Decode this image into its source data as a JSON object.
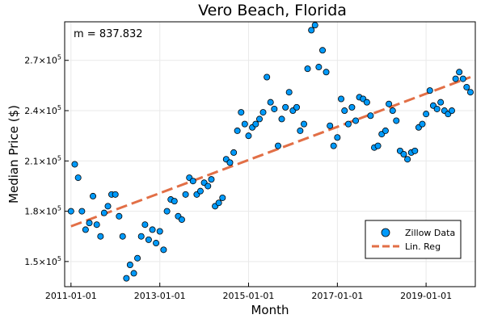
{
  "chart_data": {
    "type": "scatter",
    "title": "Vero Beach, Florida",
    "xlabel": "Month",
    "ylabel": "Median Price ($)",
    "annotation": "m = 837.832",
    "x_ticks": [
      "2011-01-01",
      "2013-01-01",
      "2015-01-01",
      "2017-01-01",
      "2019-01-01"
    ],
    "y_ticks": [
      {
        "value": 150000,
        "base": "1.5×10",
        "exp": "5"
      },
      {
        "value": 180000,
        "base": "1.8×10",
        "exp": "5"
      },
      {
        "value": 210000,
        "base": "2.1×10",
        "exp": "5"
      },
      {
        "value": 240000,
        "base": "2.4×10",
        "exp": "5"
      },
      {
        "value": 270000,
        "base": "2.7×10",
        "exp": "5"
      }
    ],
    "x_range": [
      "2010-11-10",
      "2020-02-10"
    ],
    "ylim": [
      135000,
      293000
    ],
    "grid": true,
    "legend_position": "bottom-right",
    "series": [
      {
        "name": "Zillow Data",
        "kind": "scatter",
        "color": "#009AFA",
        "points": [
          [
            "2011-01-01",
            180000
          ],
          [
            "2011-02-01",
            208000
          ],
          [
            "2011-03-01",
            200000
          ],
          [
            "2011-04-01",
            180000
          ],
          [
            "2011-05-01",
            169000
          ],
          [
            "2011-06-01",
            173000
          ],
          [
            "2011-07-01",
            189000
          ],
          [
            "2011-08-01",
            172000
          ],
          [
            "2011-09-01",
            165000
          ],
          [
            "2011-10-01",
            179000
          ],
          [
            "2011-11-01",
            183000
          ],
          [
            "2011-12-01",
            190000
          ],
          [
            "2012-01-01",
            190000
          ],
          [
            "2012-02-01",
            177000
          ],
          [
            "2012-03-01",
            165000
          ],
          [
            "2012-04-01",
            140000
          ],
          [
            "2012-05-01",
            148000
          ],
          [
            "2012-06-01",
            143000
          ],
          [
            "2012-07-01",
            152000
          ],
          [
            "2012-08-01",
            165000
          ],
          [
            "2012-09-01",
            172000
          ],
          [
            "2012-10-01",
            163000
          ],
          [
            "2012-11-01",
            169000
          ],
          [
            "2012-12-01",
            161000
          ],
          [
            "2013-01-01",
            168000
          ],
          [
            "2013-02-01",
            157000
          ],
          [
            "2013-03-01",
            180000
          ],
          [
            "2013-04-01",
            187000
          ],
          [
            "2013-05-01",
            186000
          ],
          [
            "2013-06-01",
            177000
          ],
          [
            "2013-07-01",
            175000
          ],
          [
            "2013-08-01",
            190000
          ],
          [
            "2013-09-01",
            200000
          ],
          [
            "2013-10-01",
            198000
          ],
          [
            "2013-11-01",
            190000
          ],
          [
            "2013-12-01",
            192000
          ],
          [
            "2014-01-01",
            197000
          ],
          [
            "2014-02-01",
            195000
          ],
          [
            "2014-03-01",
            199000
          ],
          [
            "2014-04-01",
            183000
          ],
          [
            "2014-05-01",
            185000
          ],
          [
            "2014-06-01",
            188000
          ],
          [
            "2014-07-01",
            211000
          ],
          [
            "2014-08-01",
            209000
          ],
          [
            "2014-09-01",
            215000
          ],
          [
            "2014-10-01",
            228000
          ],
          [
            "2014-11-01",
            239000
          ],
          [
            "2014-12-01",
            232000
          ],
          [
            "2015-01-01",
            225000
          ],
          [
            "2015-02-01",
            230000
          ],
          [
            "2015-03-01",
            232000
          ],
          [
            "2015-04-01",
            235000
          ],
          [
            "2015-05-01",
            239000
          ],
          [
            "2015-06-01",
            260000
          ],
          [
            "2015-07-01",
            245000
          ],
          [
            "2015-08-01",
            241000
          ],
          [
            "2015-09-01",
            219000
          ],
          [
            "2015-10-01",
            235000
          ],
          [
            "2015-11-01",
            242000
          ],
          [
            "2015-12-01",
            251000
          ],
          [
            "2016-01-01",
            240000
          ],
          [
            "2016-02-01",
            242000
          ],
          [
            "2016-03-01",
            228000
          ],
          [
            "2016-04-01",
            232000
          ],
          [
            "2016-05-01",
            265000
          ],
          [
            "2016-06-01",
            288000
          ],
          [
            "2016-07-01",
            291000
          ],
          [
            "2016-08-01",
            266000
          ],
          [
            "2016-09-01",
            276000
          ],
          [
            "2016-10-01",
            263000
          ],
          [
            "2016-11-01",
            231000
          ],
          [
            "2016-12-01",
            219000
          ],
          [
            "2017-01-01",
            224000
          ],
          [
            "2017-02-01",
            247000
          ],
          [
            "2017-03-01",
            240000
          ],
          [
            "2017-04-01",
            232000
          ],
          [
            "2017-05-01",
            242000
          ],
          [
            "2017-06-01",
            234000
          ],
          [
            "2017-07-01",
            248000
          ],
          [
            "2017-08-01",
            247000
          ],
          [
            "2017-09-01",
            245000
          ],
          [
            "2017-10-01",
            237000
          ],
          [
            "2017-11-01",
            218000
          ],
          [
            "2017-12-01",
            219000
          ],
          [
            "2018-01-01",
            226000
          ],
          [
            "2018-02-01",
            228000
          ],
          [
            "2018-03-01",
            244000
          ],
          [
            "2018-04-01",
            240000
          ],
          [
            "2018-05-01",
            234000
          ],
          [
            "2018-06-01",
            216000
          ],
          [
            "2018-07-01",
            214000
          ],
          [
            "2018-08-01",
            211000
          ],
          [
            "2018-09-01",
            215000
          ],
          [
            "2018-10-01",
            216000
          ],
          [
            "2018-11-01",
            230000
          ],
          [
            "2018-12-01",
            232000
          ],
          [
            "2019-01-01",
            238000
          ],
          [
            "2019-02-01",
            252000
          ],
          [
            "2019-03-01",
            243000
          ],
          [
            "2019-04-01",
            241000
          ],
          [
            "2019-05-01",
            245000
          ],
          [
            "2019-06-01",
            240000
          ],
          [
            "2019-07-01",
            238000
          ],
          [
            "2019-08-01",
            240000
          ],
          [
            "2019-09-01",
            259000
          ],
          [
            "2019-10-01",
            263000
          ],
          [
            "2019-11-01",
            259000
          ],
          [
            "2019-12-01",
            254000
          ],
          [
            "2020-01-01",
            251000
          ]
        ]
      },
      {
        "name": "Lin. Reg",
        "kind": "line",
        "style": "dashed",
        "color": "#E26F46",
        "points": [
          [
            "2011-01-01",
            171000
          ],
          [
            "2020-01-01",
            260000
          ]
        ]
      }
    ]
  }
}
